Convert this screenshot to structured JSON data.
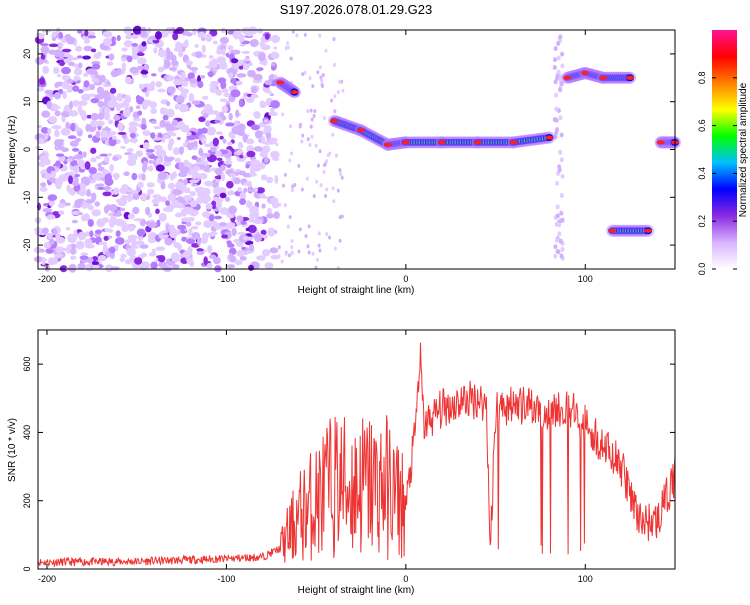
{
  "title": "S197.2026.078.01.29.G23",
  "chart_data": [
    {
      "type": "heatmap",
      "xlabel": "Height of straight line (km)",
      "ylabel": "Frequency (Hz)",
      "xlim": [
        -205,
        150
      ],
      "ylim": [
        -25,
        25
      ],
      "xticks": [
        -200,
        -100,
        0,
        100
      ],
      "yticks": [
        -20,
        -10,
        0,
        10,
        20
      ],
      "colorbar": {
        "label": "Normalized spectral amplitude",
        "range": [
          0,
          1
        ],
        "ticks": [
          "0.0",
          "0.2",
          "0.4",
          "0.6",
          "0.8"
        ],
        "colors": [
          "#ffffff",
          "#d9b3ff",
          "#8a2be2",
          "#0000ff",
          "#00bfff",
          "#00ff00",
          "#ffff00",
          "#ff8000",
          "#ff0000",
          "#ff1493"
        ]
      },
      "features": [
        {
          "name": "main-band",
          "x": [
            -40,
            -25,
            -10,
            0,
            20,
            40,
            60,
            80
          ],
          "y": [
            6,
            4,
            1,
            1.5,
            1.5,
            1.5,
            1.5,
            2.5
          ]
        },
        {
          "name": "early-band",
          "x": [
            -70,
            -62
          ],
          "y": [
            14,
            12
          ]
        },
        {
          "name": "upper-band",
          "x": [
            90,
            100,
            110,
            125
          ],
          "y": [
            15,
            16,
            15,
            15
          ]
        },
        {
          "name": "lower-band",
          "x": [
            115,
            135
          ],
          "y": [
            -17,
            -17
          ]
        },
        {
          "name": "late-band",
          "x": [
            142,
            150
          ],
          "y": [
            1.5,
            1.5
          ]
        }
      ]
    },
    {
      "type": "line",
      "xlabel": "Height of straight line (km)",
      "ylabel": "SNR (10 * v/v)",
      "xlim": [
        -205,
        150
      ],
      "ylim": [
        0,
        700
      ],
      "xticks": [
        -200,
        -100,
        0,
        100
      ],
      "yticks": [
        0,
        200,
        400,
        600
      ],
      "color": "#ee3333",
      "series": [
        {
          "name": "SNR",
          "x": [
            -205,
            -150,
            -100,
            -80,
            -70,
            -60,
            -50,
            -40,
            -30,
            -20,
            -10,
            0,
            5,
            8,
            10,
            20,
            30,
            40,
            45,
            47,
            50,
            60,
            70,
            80,
            90,
            100,
            110,
            120,
            130,
            140,
            150
          ],
          "y": [
            20,
            22,
            30,
            35,
            60,
            150,
            200,
            250,
            240,
            250,
            240,
            180,
            390,
            620,
            420,
            470,
            490,
            500,
            480,
            50,
            470,
            480,
            470,
            460,
            470,
            430,
            360,
            300,
            140,
            140,
            270
          ]
        }
      ]
    }
  ]
}
